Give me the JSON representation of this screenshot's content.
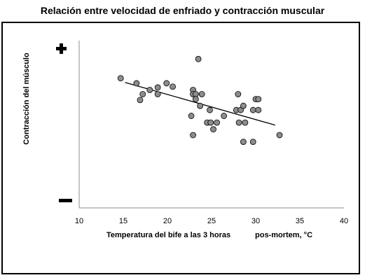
{
  "chart_data": {
    "type": "scatter",
    "title": "Relación entre velocidad de enfriado y contracción muscular",
    "xlabel_part1": "Temperatura del bife a las 3 horas",
    "xlabel_part2": "pos-mortem, °C",
    "ylabel": "Contracción del músculo",
    "y_top_symbol": "+",
    "y_bottom_symbol": "−",
    "xlim": [
      10,
      40
    ],
    "xticks": [
      10,
      15,
      20,
      25,
      30,
      35,
      40
    ],
    "ylim": [
      0,
      10
    ],
    "grid": false,
    "legend": "none",
    "colors": {
      "point_fill": "#8c8c8c",
      "point_stroke": "#000000",
      "trend": "#000000"
    },
    "points": [
      {
        "x": 14.7,
        "y": 7.75
      },
      {
        "x": 16.5,
        "y": 7.45
      },
      {
        "x": 16.9,
        "y": 6.45
      },
      {
        "x": 17.2,
        "y": 6.8
      },
      {
        "x": 18.0,
        "y": 7.05
      },
      {
        "x": 18.9,
        "y": 7.2
      },
      {
        "x": 18.9,
        "y": 6.8
      },
      {
        "x": 19.9,
        "y": 7.45
      },
      {
        "x": 20.6,
        "y": 7.25
      },
      {
        "x": 22.7,
        "y": 5.5
      },
      {
        "x": 22.9,
        "y": 7.05
      },
      {
        "x": 22.9,
        "y": 6.8
      },
      {
        "x": 22.9,
        "y": 4.35
      },
      {
        "x": 23.2,
        "y": 6.8
      },
      {
        "x": 23.2,
        "y": 6.5
      },
      {
        "x": 23.5,
        "y": 8.9
      },
      {
        "x": 23.7,
        "y": 6.1
      },
      {
        "x": 23.9,
        "y": 6.8
      },
      {
        "x": 24.5,
        "y": 5.1
      },
      {
        "x": 24.8,
        "y": 5.85
      },
      {
        "x": 24.9,
        "y": 5.1
      },
      {
        "x": 25.2,
        "y": 4.7
      },
      {
        "x": 25.6,
        "y": 5.1
      },
      {
        "x": 26.4,
        "y": 5.5
      },
      {
        "x": 27.8,
        "y": 5.85
      },
      {
        "x": 28.0,
        "y": 6.8
      },
      {
        "x": 28.1,
        "y": 5.1
      },
      {
        "x": 28.3,
        "y": 5.85
      },
      {
        "x": 28.6,
        "y": 6.1
      },
      {
        "x": 28.6,
        "y": 3.95
      },
      {
        "x": 28.8,
        "y": 5.1
      },
      {
        "x": 29.7,
        "y": 5.85
      },
      {
        "x": 29.7,
        "y": 3.95
      },
      {
        "x": 30.0,
        "y": 6.5
      },
      {
        "x": 30.3,
        "y": 6.5
      },
      {
        "x": 30.3,
        "y": 5.85
      },
      {
        "x": 32.7,
        "y": 4.35
      }
    ],
    "trendline": {
      "x": [
        15.2,
        32.2
      ],
      "y": [
        7.5,
        4.95
      ]
    }
  }
}
